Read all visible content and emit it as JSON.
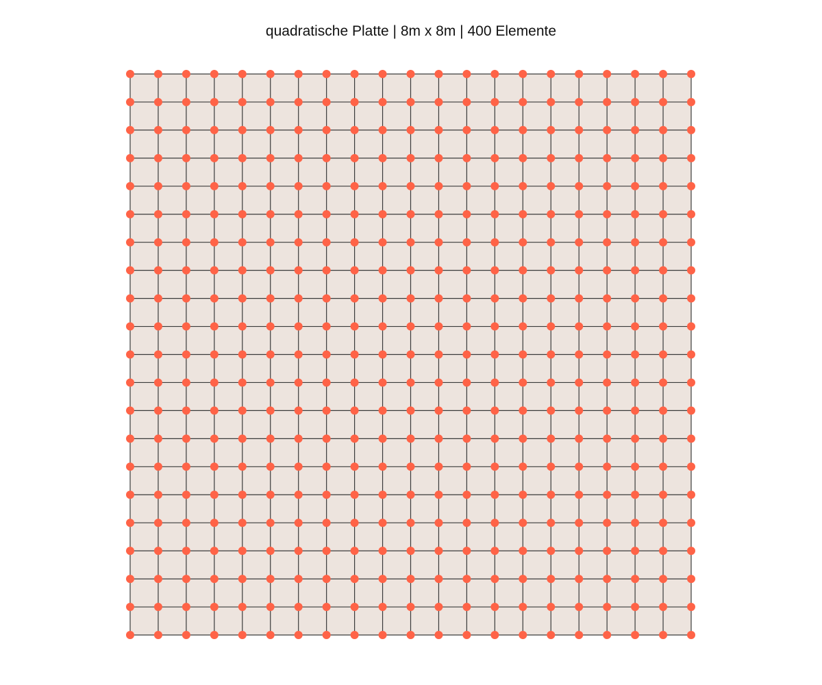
{
  "title": "quadratische Platte | 8m x 8m | 400 Elemente",
  "mesh": {
    "elements_per_side": 20,
    "plate_size_m": 8
  },
  "colors": {
    "plate_fill": "#EDE4DE",
    "grid_line": "#3a3a3a",
    "node": "#FF6347"
  }
}
